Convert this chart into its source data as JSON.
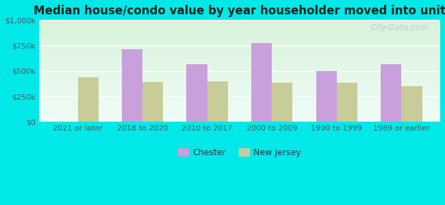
{
  "title": "Median house/condo value by year householder moved into unit",
  "categories": [
    "2021 or later",
    "2018 to 2020",
    "2010 to 2017",
    "2000 to 2009",
    "1990 to 1999",
    "1989 or earlier"
  ],
  "chester_values": [
    0,
    710000,
    565000,
    775000,
    500000,
    565000
  ],
  "nj_values": [
    435000,
    390000,
    400000,
    385000,
    385000,
    350000
  ],
  "chester_color": "#c9a0dc",
  "nj_color": "#c8cc99",
  "background_outer": "#00e8e8",
  "ylim": [
    0,
    1000000
  ],
  "yticks": [
    0,
    250000,
    500000,
    750000,
    1000000
  ],
  "ytick_labels": [
    "$0",
    "$250k",
    "$500k",
    "$750k",
    "$1,000k"
  ],
  "watermark": "City-Data.com",
  "legend_chester": "Chester",
  "legend_nj": "New Jersey",
  "bar_width": 0.32,
  "title_fontsize": 12,
  "tick_fontsize": 8
}
